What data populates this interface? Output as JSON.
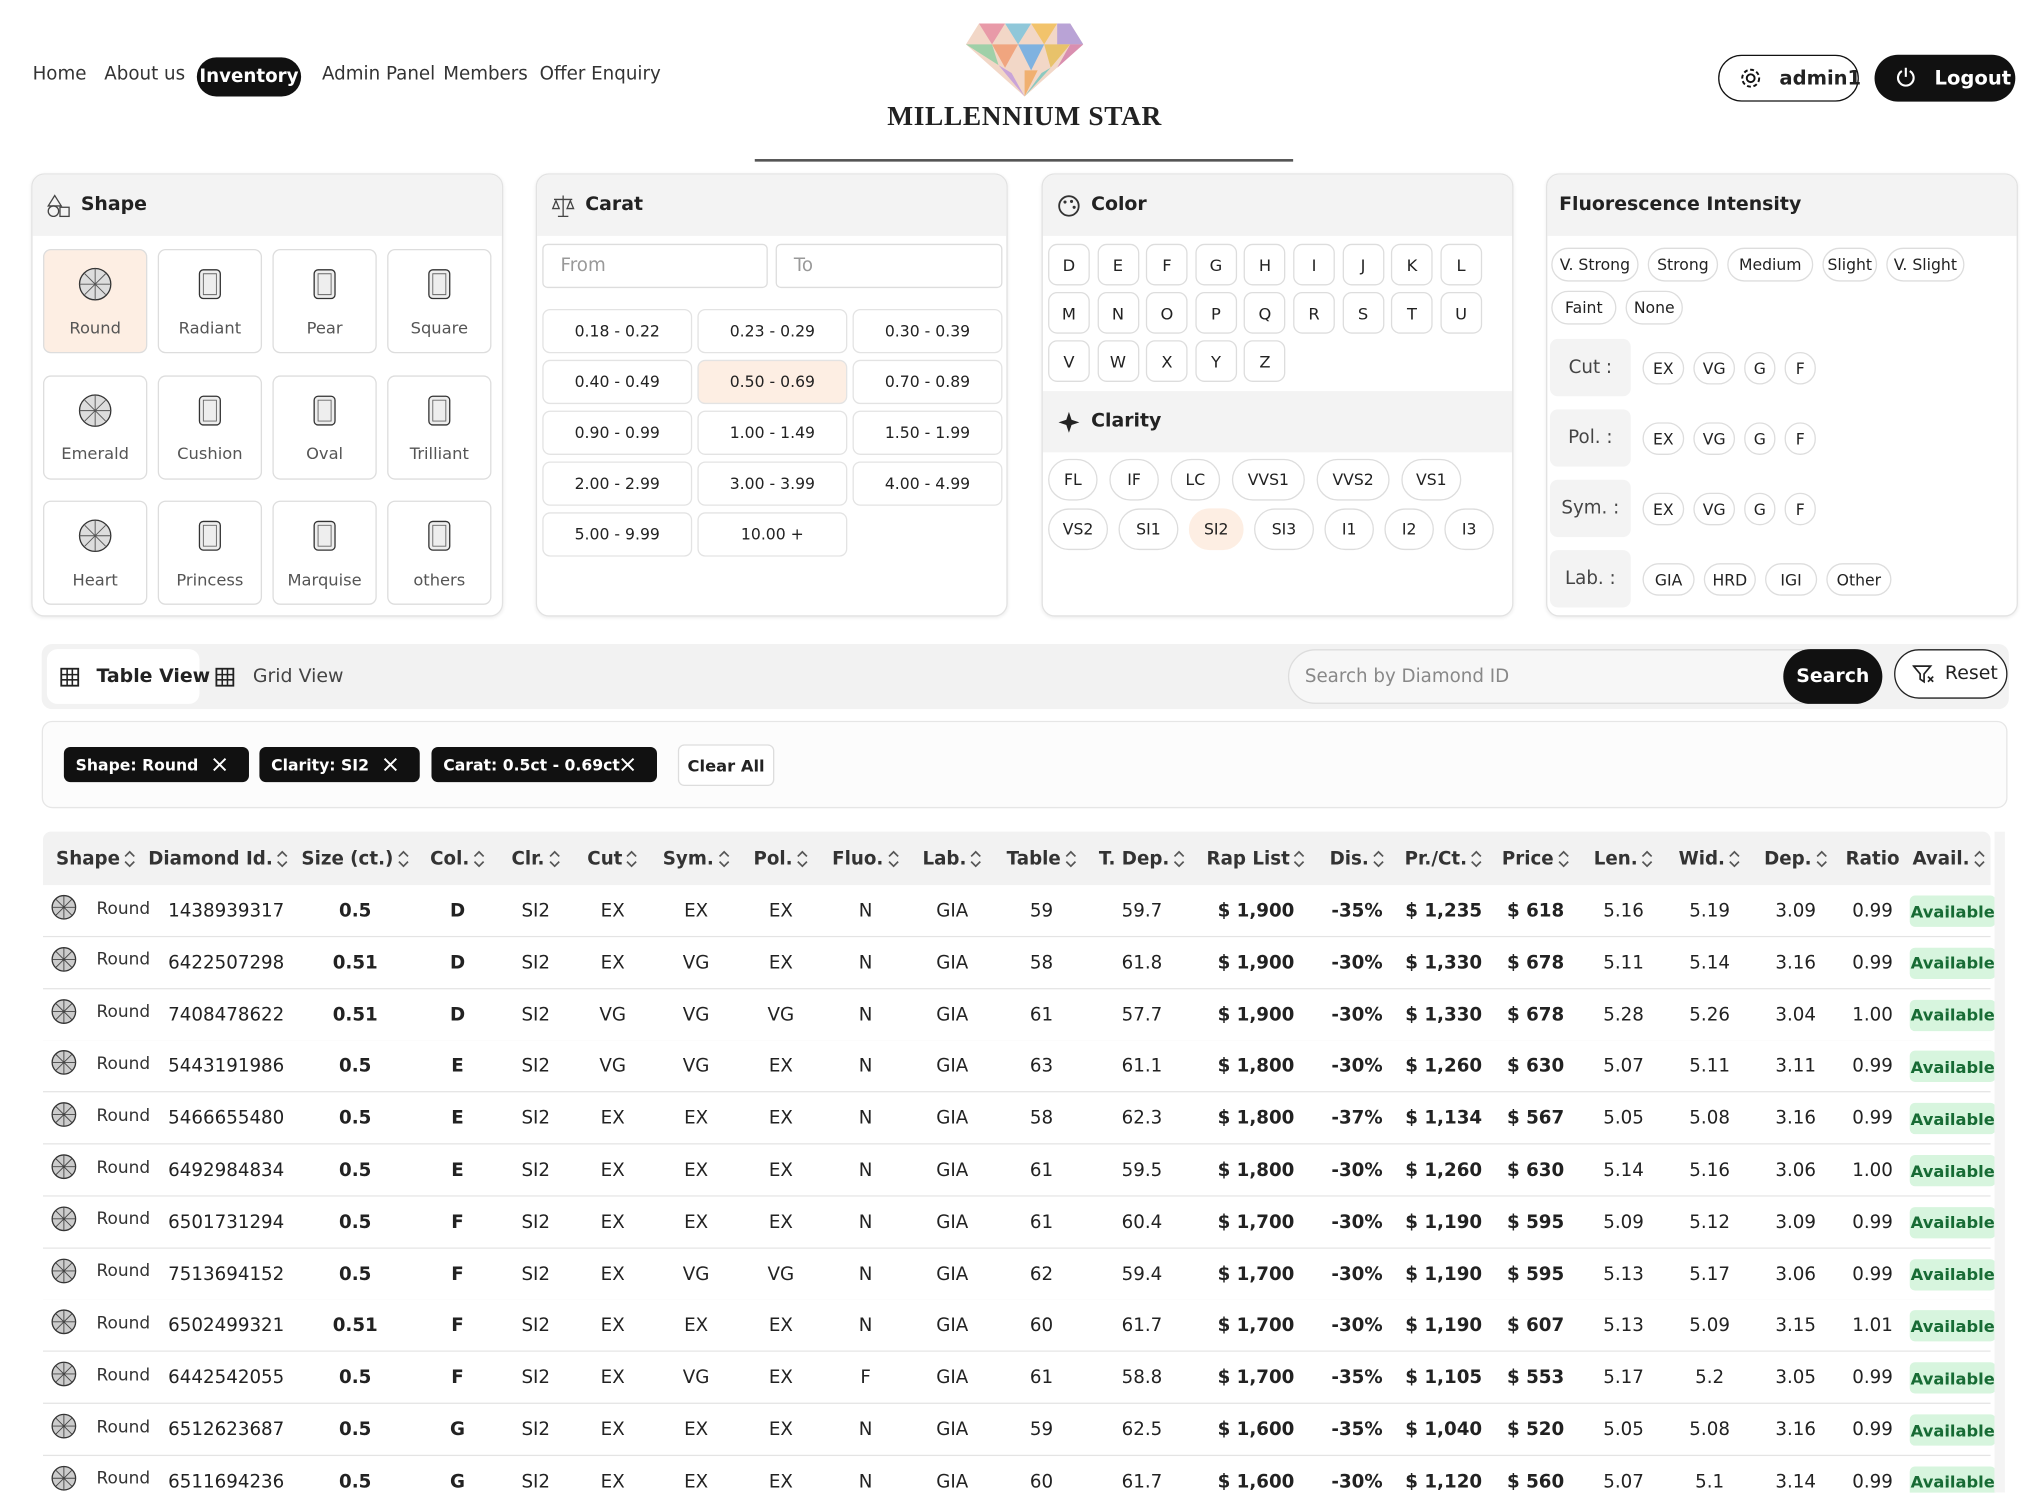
{
  "nav": {
    "links": [
      "Home",
      "About us",
      "Inventory",
      "Admin Panel",
      "Members",
      "Offer Enquiry"
    ],
    "active": "Inventory",
    "brand": "MILLENNIUM STAR",
    "user": "admin1",
    "logout": "Logout"
  },
  "filters": {
    "shape": {
      "title": "Shape",
      "options": [
        "Round",
        "Radiant",
        "Pear",
        "Square",
        "Emerald",
        "Cushion",
        "Oval",
        "Trilliant",
        "Heart",
        "Princess",
        "Marquise",
        "others"
      ],
      "selected": "Round"
    },
    "carat": {
      "title": "Carat",
      "from": "From",
      "to": "To",
      "ranges": [
        "0.18 - 0.22",
        "0.23 - 0.29",
        "0.30 - 0.39",
        "0.40 - 0.49",
        "0.50 - 0.69",
        "0.70 - 0.89",
        "0.90 - 0.99",
        "1.00 - 1.49",
        "1.50 - 1.99",
        "2.00 - 2.99",
        "3.00 - 3.99",
        "4.00 - 4.99",
        "5.00 - 9.99",
        "10.00 +"
      ],
      "selected": "0.50 - 0.69"
    },
    "color": {
      "title": "Color",
      "options": [
        "D",
        "E",
        "F",
        "G",
        "H",
        "I",
        "J",
        "K",
        "L",
        "M",
        "N",
        "O",
        "P",
        "Q",
        "R",
        "S",
        "T",
        "U",
        "V",
        "W",
        "X",
        "Y",
        "Z"
      ]
    },
    "clarity": {
      "title": "Clarity",
      "options": [
        "FL",
        "IF",
        "LC",
        "VVS1",
        "VVS2",
        "VS1",
        "VS2",
        "SI1",
        "SI2",
        "SI3",
        "I1",
        "I2",
        "I3"
      ],
      "selected": "SI2"
    },
    "fluorescence": {
      "title": "Fluorescence Intensity",
      "options": [
        "V. Strong",
        "Strong",
        "Medium",
        "Slight",
        "V. Slight",
        "Faint",
        "None"
      ]
    },
    "grades": [
      {
        "label": "Cut :",
        "options": [
          "EX",
          "VG",
          "G",
          "F"
        ]
      },
      {
        "label": "Pol. :",
        "options": [
          "EX",
          "VG",
          "G",
          "F"
        ]
      },
      {
        "label": "Sym. :",
        "options": [
          "EX",
          "VG",
          "G",
          "F"
        ]
      },
      {
        "label": "Lab. :",
        "options": [
          "GIA",
          "HRD",
          "IGI",
          "Other"
        ]
      }
    ]
  },
  "toolbar": {
    "table_view": "Table View",
    "grid_view": "Grid View",
    "search_placeholder": "Search by Diamond ID",
    "search": "Search",
    "reset": "Reset"
  },
  "active_filters": {
    "chips": [
      "Shape: Round",
      "Clarity: SI2",
      "Carat: 0.5ct - 0.69ct"
    ],
    "clear": "Clear All"
  },
  "table": {
    "columns": [
      "Shape",
      "Diamond Id.",
      "Size (ct.)",
      "Col.",
      "Clr.",
      "Cut",
      "Sym.",
      "Pol.",
      "Fluo.",
      "Lab.",
      "Table",
      "T. Dep.",
      "Rap List",
      "Dis.",
      "Pr./Ct.",
      "Price",
      "Len.",
      "Wid.",
      "Dep.",
      "Ratio",
      "Avail."
    ],
    "rows": [
      [
        "Round",
        "1438939317",
        "0.5",
        "D",
        "SI2",
        "EX",
        "EX",
        "EX",
        "N",
        "GIA",
        "59",
        "59.7",
        "$ 1,900",
        "-35%",
        "$ 1,235",
        "$ 618",
        "5.16",
        "5.19",
        "3.09",
        "0.99",
        "Available"
      ],
      [
        "Round",
        "6422507298",
        "0.51",
        "D",
        "SI2",
        "EX",
        "VG",
        "EX",
        "N",
        "GIA",
        "58",
        "61.8",
        "$ 1,900",
        "-30%",
        "$ 1,330",
        "$ 678",
        "5.11",
        "5.14",
        "3.16",
        "0.99",
        "Available"
      ],
      [
        "Round",
        "7408478622",
        "0.51",
        "D",
        "SI2",
        "VG",
        "VG",
        "VG",
        "N",
        "GIA",
        "61",
        "57.7",
        "$ 1,900",
        "-30%",
        "$ 1,330",
        "$ 678",
        "5.28",
        "5.26",
        "3.04",
        "1.00",
        "Available"
      ],
      [
        "Round",
        "5443191986",
        "0.5",
        "E",
        "SI2",
        "VG",
        "VG",
        "EX",
        "N",
        "GIA",
        "63",
        "61.1",
        "$ 1,800",
        "-30%",
        "$ 1,260",
        "$ 630",
        "5.07",
        "5.11",
        "3.11",
        "0.99",
        "Available"
      ],
      [
        "Round",
        "5466655480",
        "0.5",
        "E",
        "SI2",
        "EX",
        "EX",
        "EX",
        "N",
        "GIA",
        "58",
        "62.3",
        "$ 1,800",
        "-37%",
        "$ 1,134",
        "$ 567",
        "5.05",
        "5.08",
        "3.16",
        "0.99",
        "Available"
      ],
      [
        "Round",
        "6492984834",
        "0.5",
        "E",
        "SI2",
        "EX",
        "EX",
        "EX",
        "N",
        "GIA",
        "61",
        "59.5",
        "$ 1,800",
        "-30%",
        "$ 1,260",
        "$ 630",
        "5.14",
        "5.16",
        "3.06",
        "1.00",
        "Available"
      ],
      [
        "Round",
        "6501731294",
        "0.5",
        "F",
        "SI2",
        "EX",
        "EX",
        "EX",
        "N",
        "GIA",
        "61",
        "60.4",
        "$ 1,700",
        "-30%",
        "$ 1,190",
        "$ 595",
        "5.09",
        "5.12",
        "3.09",
        "0.99",
        "Available"
      ],
      [
        "Round",
        "7513694152",
        "0.5",
        "F",
        "SI2",
        "EX",
        "VG",
        "VG",
        "N",
        "GIA",
        "62",
        "59.4",
        "$ 1,700",
        "-30%",
        "$ 1,190",
        "$ 595",
        "5.13",
        "5.17",
        "3.06",
        "0.99",
        "Available"
      ],
      [
        "Round",
        "6502499321",
        "0.51",
        "F",
        "SI2",
        "EX",
        "EX",
        "EX",
        "N",
        "GIA",
        "60",
        "61.7",
        "$ 1,700",
        "-30%",
        "$ 1,190",
        "$ 607",
        "5.13",
        "5.09",
        "3.15",
        "1.01",
        "Available"
      ],
      [
        "Round",
        "6442542055",
        "0.5",
        "F",
        "SI2",
        "EX",
        "VG",
        "EX",
        "F",
        "GIA",
        "61",
        "58.8",
        "$ 1,700",
        "-35%",
        "$ 1,105",
        "$ 553",
        "5.17",
        "5.2",
        "3.05",
        "0.99",
        "Available"
      ],
      [
        "Round",
        "6512623687",
        "0.5",
        "G",
        "SI2",
        "EX",
        "EX",
        "EX",
        "N",
        "GIA",
        "59",
        "62.5",
        "$ 1,600",
        "-35%",
        "$ 1,040",
        "$ 520",
        "5.05",
        "5.08",
        "3.16",
        "0.99",
        "Available"
      ],
      [
        "Round",
        "6511694236",
        "0.5",
        "G",
        "SI2",
        "EX",
        "EX",
        "EX",
        "N",
        "GIA",
        "60",
        "61.7",
        "$ 1,600",
        "-30%",
        "$ 1,120",
        "$ 560",
        "5.07",
        "5.1",
        "3.14",
        "0.99",
        "Available"
      ]
    ]
  }
}
